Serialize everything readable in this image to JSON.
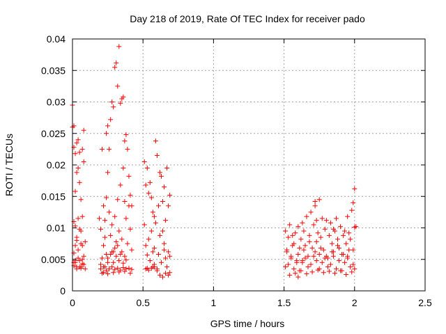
{
  "chart_data": {
    "type": "scatter",
    "title": "Day 218 of 2019, Rate Of TEC Index for receiver pado",
    "xlabel": "GPS time / hours",
    "ylabel": "ROTI / TECUs",
    "xlim": [
      0,
      2.5
    ],
    "ylim": [
      0,
      0.04
    ],
    "x_ticks": [
      0,
      0.5,
      1,
      1.5,
      2,
      2.5
    ],
    "x_tick_labels": [
      "0",
      "0.5",
      "1",
      "1.5",
      "2",
      "2.5"
    ],
    "y_ticks": [
      0,
      0.005,
      0.01,
      0.015,
      0.02,
      0.025,
      0.03,
      0.035,
      0.04
    ],
    "y_tick_labels": [
      "0",
      "0.005",
      "0.01",
      "0.015",
      "0.02",
      "0.025",
      "0.03",
      "0.035",
      "0.04"
    ],
    "grid": true,
    "marker": "+",
    "series": [
      {
        "name": "ROTI",
        "color": "#ff0000",
        "x": [
          0.0,
          0.0,
          0.01,
          0.01,
          0.01,
          0.01,
          0.02,
          0.02,
          0.02,
          0.02,
          0.03,
          0.03,
          0.03,
          0.03,
          0.04,
          0.04,
          0.04,
          0.05,
          0.05,
          0.05,
          0.06,
          0.06,
          0.06,
          0.07,
          0.07,
          0.07,
          0.08,
          0.08,
          0.08,
          0.09,
          0.01,
          0.02,
          0.03,
          0.04,
          0.05,
          0.06,
          0.07,
          0.08,
          0.09,
          0.01,
          0.03,
          0.05,
          0.07,
          0.02,
          0.04,
          0.06,
          0.19,
          0.2,
          0.2,
          0.21,
          0.21,
          0.22,
          0.22,
          0.22,
          0.23,
          0.23,
          0.23,
          0.24,
          0.24,
          0.24,
          0.25,
          0.25,
          0.25,
          0.26,
          0.26,
          0.27,
          0.27,
          0.28,
          0.28,
          0.29,
          0.29,
          0.3,
          0.3,
          0.31,
          0.31,
          0.32,
          0.32,
          0.33,
          0.33,
          0.34,
          0.34,
          0.35,
          0.35,
          0.36,
          0.36,
          0.37,
          0.37,
          0.38,
          0.38,
          0.39,
          0.39,
          0.4,
          0.4,
          0.41,
          0.41,
          0.42,
          0.42,
          0.2,
          0.22,
          0.24,
          0.26,
          0.28,
          0.3,
          0.32,
          0.34,
          0.36,
          0.38,
          0.4,
          0.42,
          0.21,
          0.25,
          0.29,
          0.33,
          0.37,
          0.41,
          0.25,
          0.27,
          0.28,
          0.29,
          0.3,
          0.31,
          0.32,
          0.33,
          0.34,
          0.35,
          0.36,
          0.37,
          0.38,
          0.51,
          0.51,
          0.52,
          0.52,
          0.53,
          0.53,
          0.54,
          0.54,
          0.55,
          0.55,
          0.56,
          0.56,
          0.57,
          0.57,
          0.58,
          0.58,
          0.59,
          0.59,
          0.6,
          0.6,
          0.61,
          0.61,
          0.62,
          0.62,
          0.63,
          0.63,
          0.64,
          0.64,
          0.65,
          0.65,
          0.66,
          0.66,
          0.67,
          0.67,
          0.68,
          0.68,
          0.69,
          0.69,
          0.52,
          0.54,
          0.56,
          0.58,
          0.6,
          0.62,
          0.64,
          0.66,
          0.68,
          0.53,
          0.57,
          0.61,
          0.65,
          0.69,
          0.58,
          1.51,
          1.52,
          1.53,
          1.54,
          1.55,
          1.56,
          1.57,
          1.58,
          1.59,
          1.6,
          1.61,
          1.62,
          1.63,
          1.64,
          1.65,
          1.66,
          1.67,
          1.68,
          1.69,
          1.7,
          1.71,
          1.72,
          1.73,
          1.74,
          1.75,
          1.76,
          1.77,
          1.78,
          1.79,
          1.8,
          1.81,
          1.82,
          1.83,
          1.84,
          1.85,
          1.86,
          1.87,
          1.88,
          1.89,
          1.9,
          1.91,
          1.92,
          1.93,
          1.94,
          1.95,
          1.96,
          1.97,
          1.98,
          1.99,
          2.0,
          1.51,
          1.53,
          1.55,
          1.57,
          1.59,
          1.61,
          1.63,
          1.65,
          1.67,
          1.69,
          1.71,
          1.73,
          1.75,
          1.77,
          1.79,
          1.81,
          1.83,
          1.85,
          1.87,
          1.89,
          1.91,
          1.93,
          1.95,
          1.97,
          1.99,
          1.52,
          1.56,
          1.6,
          1.64,
          1.68,
          1.72,
          1.76,
          1.8,
          1.84,
          1.88,
          1.92,
          1.96,
          2.0,
          1.54,
          1.58,
          1.62,
          1.66,
          1.7,
          1.74,
          1.78,
          1.82,
          1.86,
          1.9,
          1.94,
          1.98,
          1.63,
          1.72,
          1.73,
          1.85,
          1.95,
          1.99,
          2.0,
          2.01,
          1.75,
          1.6
        ],
        "y": [
          0.0295,
          0.026,
          0.0262,
          0.0228,
          0.011,
          0.0045,
          0.0218,
          0.0158,
          0.0103,
          0.0045,
          0.0235,
          0.0188,
          0.008,
          0.0038,
          0.024,
          0.0195,
          0.0115,
          0.022,
          0.0172,
          0.0048,
          0.0145,
          0.0095,
          0.0038,
          0.0225,
          0.0118,
          0.0072,
          0.0255,
          0.0205,
          0.0055,
          0.0035,
          0.006,
          0.0072,
          0.0085,
          0.0065,
          0.0098,
          0.0075,
          0.005,
          0.0042,
          0.0078,
          0.004,
          0.0035,
          0.0038,
          0.0043,
          0.0048,
          0.0052,
          0.0036,
          0.0115,
          0.0098,
          0.0042,
          0.0052,
          0.0225,
          0.0135,
          0.0072,
          0.0029,
          0.0112,
          0.0085,
          0.0038,
          0.025,
          0.0148,
          0.0058,
          0.0262,
          0.0188,
          0.0045,
          0.0225,
          0.0125,
          0.0272,
          0.0088,
          0.03,
          0.0105,
          0.0292,
          0.0062,
          0.0355,
          0.0118,
          0.0362,
          0.0078,
          0.0325,
          0.0145,
          0.0388,
          0.0095,
          0.0298,
          0.0168,
          0.0305,
          0.0082,
          0.0308,
          0.0195,
          0.0238,
          0.0142,
          0.0248,
          0.0115,
          0.0225,
          0.0075,
          0.0182,
          0.0135,
          0.0152,
          0.0098,
          0.0135,
          0.0065,
          0.0035,
          0.0038,
          0.0032,
          0.0035,
          0.0038,
          0.0034,
          0.0036,
          0.0033,
          0.0037,
          0.0035,
          0.0036,
          0.0034,
          0.0028,
          0.0027,
          0.0029,
          0.003,
          0.0031,
          0.0028,
          0.0052,
          0.0058,
          0.0062,
          0.0045,
          0.0068,
          0.0055,
          0.0072,
          0.0048,
          0.0058,
          0.0062,
          0.0044,
          0.0055,
          0.0049,
          0.0205,
          0.0105,
          0.0168,
          0.0072,
          0.0195,
          0.0036,
          0.0155,
          0.0082,
          0.0172,
          0.0048,
          0.0148,
          0.0095,
          0.0125,
          0.0038,
          0.0118,
          0.0068,
          0.0238,
          0.0108,
          0.0215,
          0.0035,
          0.0135,
          0.0058,
          0.0188,
          0.0088,
          0.0182,
          0.0045,
          0.0142,
          0.0095,
          0.0165,
          0.0075,
          0.0112,
          0.0052,
          0.0195,
          0.0038,
          0.0135,
          0.0062,
          0.0152,
          0.0029,
          0.0035,
          0.0033,
          0.0036,
          0.0038,
          0.0032,
          0.0025,
          0.0022,
          0.0028,
          0.0025,
          0.0057,
          0.0062,
          0.0058,
          0.0065,
          0.0055,
          0.0042,
          0.0095,
          0.0065,
          0.0085,
          0.0105,
          0.0052,
          0.0088,
          0.0075,
          0.0092,
          0.0045,
          0.0102,
          0.0068,
          0.0082,
          0.0048,
          0.0095,
          0.0072,
          0.0118,
          0.0055,
          0.0088,
          0.0125,
          0.0068,
          0.0105,
          0.0142,
          0.0078,
          0.0092,
          0.0145,
          0.0085,
          0.0115,
          0.0065,
          0.0098,
          0.0112,
          0.0052,
          0.0088,
          0.0108,
          0.0075,
          0.0062,
          0.0095,
          0.0115,
          0.0082,
          0.0068,
          0.0102,
          0.0058,
          0.0088,
          0.0095,
          0.0075,
          0.0055,
          0.0092,
          0.0082,
          0.0128,
          0.0065,
          0.0162,
          0.0038,
          0.0042,
          0.0055,
          0.0035,
          0.0048,
          0.0032,
          0.0045,
          0.0052,
          0.0038,
          0.0042,
          0.0055,
          0.0048,
          0.0035,
          0.0045,
          0.0052,
          0.0038,
          0.0042,
          0.0055,
          0.0035,
          0.0048,
          0.0032,
          0.0045,
          0.0052,
          0.0038,
          0.0042,
          0.0062,
          0.0072,
          0.0058,
          0.0065,
          0.0078,
          0.0062,
          0.0068,
          0.0055,
          0.0062,
          0.0072,
          0.0058,
          0.0065,
          0.0035,
          0.0025,
          0.0028,
          0.0032,
          0.0027,
          0.003,
          0.0033,
          0.0029,
          0.0031,
          0.0028,
          0.0032,
          0.0026,
          0.003,
          0.0108,
          0.0135,
          0.0112,
          0.0098,
          0.0118,
          0.014,
          0.0101,
          0.0102,
          0.0058,
          0.0022
        ]
      }
    ]
  }
}
